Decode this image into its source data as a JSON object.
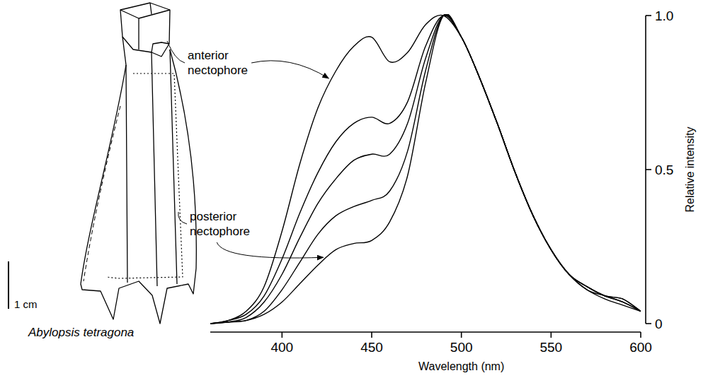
{
  "chart_data": {
    "type": "line",
    "color": "#000000",
    "grid": false,
    "x_label": "Wavelength (nm)",
    "y_label": "Relative intensity",
    "xlim": [
      360,
      600
    ],
    "xticks": [
      400,
      450,
      500,
      550,
      600
    ],
    "ylim": [
      0,
      1
    ],
    "yticks": [
      0,
      0.5,
      {
        "value": 1,
        "label": "1.0"
      }
    ],
    "x": [
      360,
      370,
      380,
      390,
      400,
      410,
      420,
      430,
      440,
      450,
      460,
      470,
      480,
      490,
      500,
      510,
      520,
      530,
      540,
      550,
      560,
      570,
      580,
      590,
      600
    ],
    "series": [
      {
        "values": [
          0,
          0.01,
          0.04,
          0.12,
          0.3,
          0.52,
          0.7,
          0.82,
          0.9,
          0.93,
          0.85,
          0.88,
          0.97,
          1.0,
          0.93,
          0.8,
          0.65,
          0.49,
          0.35,
          0.24,
          0.16,
          0.12,
          0.09,
          0.08,
          0.04
        ]
      },
      {
        "values": [
          0,
          0.01,
          0.03,
          0.09,
          0.21,
          0.36,
          0.49,
          0.59,
          0.65,
          0.67,
          0.65,
          0.72,
          0.9,
          1.0,
          0.93,
          0.8,
          0.65,
          0.49,
          0.35,
          0.24,
          0.16,
          0.11,
          0.09,
          0.07,
          0.04
        ]
      },
      {
        "values": [
          0,
          0.005,
          0.02,
          0.07,
          0.16,
          0.28,
          0.39,
          0.47,
          0.53,
          0.55,
          0.55,
          0.65,
          0.86,
          1.0,
          0.93,
          0.8,
          0.65,
          0.49,
          0.35,
          0.24,
          0.16,
          0.11,
          0.08,
          0.06,
          0.04
        ]
      },
      {
        "values": [
          0,
          0.005,
          0.01,
          0.04,
          0.11,
          0.2,
          0.29,
          0.35,
          0.38,
          0.4,
          0.43,
          0.56,
          0.82,
          1.0,
          0.93,
          0.8,
          0.65,
          0.49,
          0.35,
          0.24,
          0.16,
          0.12,
          0.09,
          0.08,
          0.04
        ]
      },
      {
        "values": [
          0,
          0.005,
          0.01,
          0.03,
          0.07,
          0.13,
          0.19,
          0.24,
          0.26,
          0.27,
          0.33,
          0.48,
          0.78,
          1.0,
          0.93,
          0.8,
          0.65,
          0.49,
          0.35,
          0.24,
          0.16,
          0.12,
          0.09,
          0.07,
          0.04
        ]
      }
    ],
    "annotations": [
      {
        "text": "anterior nectophore",
        "series": 0,
        "x": 428
      },
      {
        "text": "posterior nectophore",
        "series": 4,
        "x": 425
      }
    ],
    "illustration": {
      "caption": "Abylopsis tetragona",
      "scale_bar": "1 cm"
    }
  }
}
